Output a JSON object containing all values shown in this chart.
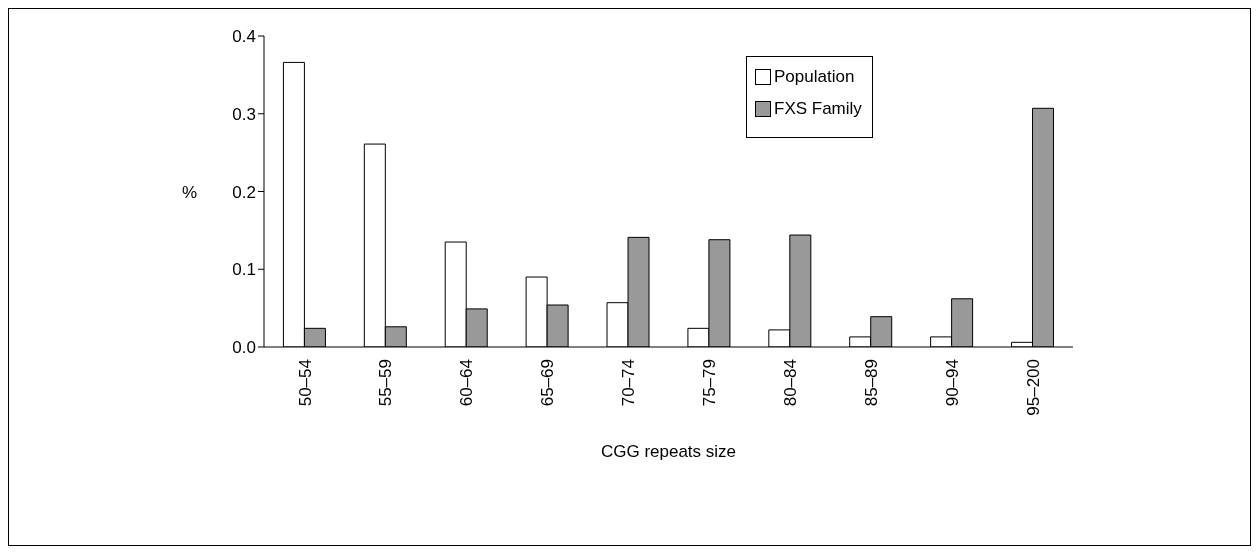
{
  "chart_data": {
    "type": "bar",
    "xlabel": "CGG repeats size",
    "ylabel": "%",
    "categories": [
      "50–54",
      "55–59",
      "60–64",
      "65–69",
      "70–74",
      "75–79",
      "80–84",
      "85–89",
      "90–94",
      "95–200"
    ],
    "series": [
      {
        "name": "Population",
        "color": "#ffffff",
        "values": [
          0.366,
          0.261,
          0.135,
          0.09,
          0.057,
          0.024,
          0.022,
          0.013,
          0.013,
          0.006
        ]
      },
      {
        "name": "FXS Family",
        "color": "#999999",
        "values": [
          0.024,
          0.026,
          0.049,
          0.054,
          0.141,
          0.138,
          0.144,
          0.039,
          0.062,
          0.307
        ]
      }
    ],
    "ylim": [
      0,
      0.4
    ],
    "yticks": [
      {
        "value": 0,
        "label": "0.0"
      },
      {
        "value": 0.1,
        "label": "0.1"
      },
      {
        "value": 0.2,
        "label": "0.2"
      },
      {
        "value": 0.3,
        "label": "0.3"
      },
      {
        "value": 0.4,
        "label": "0.4"
      }
    ],
    "grid": false,
    "legend": "top right"
  }
}
